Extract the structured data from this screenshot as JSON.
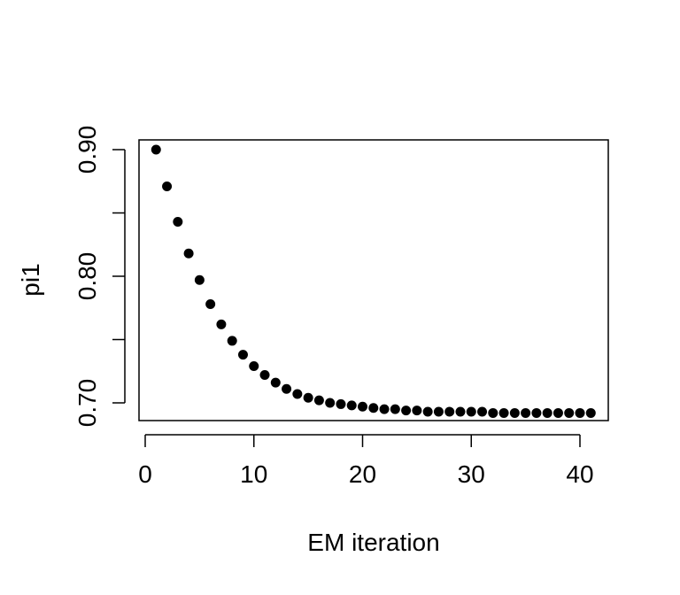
{
  "chart_data": {
    "type": "scatter",
    "title": "",
    "xlabel": "EM iteration",
    "ylabel": "pi1",
    "xlim": [
      0,
      42.5
    ],
    "ylim": [
      0.685,
      0.91
    ],
    "x_ticks": [
      0,
      10,
      20,
      30,
      40
    ],
    "x_tick_labels": [
      "0",
      "10",
      "20",
      "30",
      "40"
    ],
    "y_ticks": [
      0.7,
      0.75,
      0.8,
      0.85,
      0.9
    ],
    "y_tick_labels": [
      "0.70",
      "",
      "0.80",
      "",
      "0.90"
    ],
    "grid": false,
    "legend": "none",
    "marker_color": "#000000",
    "series": [
      {
        "x": [
          1,
          2,
          3,
          4,
          5,
          6,
          7,
          8,
          9,
          10,
          11,
          12,
          13,
          14,
          15,
          16,
          17,
          18,
          19,
          20,
          21,
          22,
          23,
          24,
          25,
          26,
          27,
          28,
          29,
          30,
          31,
          32,
          33,
          34,
          35,
          36,
          37,
          38,
          39,
          40,
          41
        ],
        "y": [
          0.9,
          0.871,
          0.843,
          0.818,
          0.797,
          0.778,
          0.762,
          0.749,
          0.738,
          0.729,
          0.722,
          0.716,
          0.711,
          0.707,
          0.704,
          0.702,
          0.7,
          0.699,
          0.698,
          0.697,
          0.696,
          0.695,
          0.695,
          0.694,
          0.694,
          0.693,
          0.693,
          0.693,
          0.693,
          0.693,
          0.693,
          0.692,
          0.692,
          0.692,
          0.692,
          0.692,
          0.692,
          0.692,
          0.692,
          0.692,
          0.692
        ]
      }
    ]
  }
}
